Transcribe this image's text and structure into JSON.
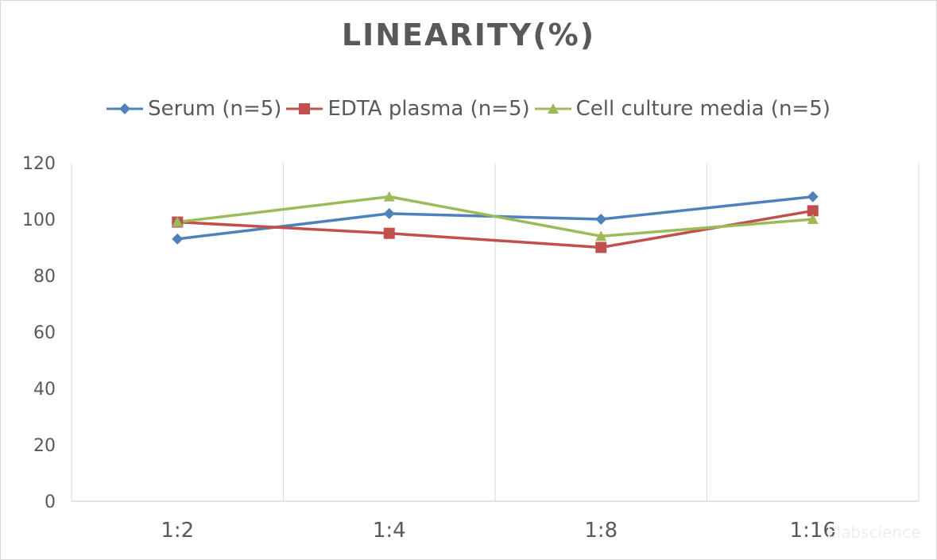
{
  "chart_data": {
    "type": "line",
    "title": "LINEARITY(%)",
    "xlabel": "",
    "ylabel": "",
    "categories": [
      "1:2",
      "1:4",
      "1:8",
      "1:16"
    ],
    "ylim": [
      0,
      120
    ],
    "yticks": [
      0,
      20,
      40,
      60,
      80,
      100,
      120
    ],
    "ytick_labels": [
      "0",
      "20",
      "40",
      "60",
      "80",
      "100",
      "120"
    ],
    "grid": "vertical-only",
    "legend_position": "top",
    "series": [
      {
        "name": "Serum (n=5)",
        "color": "#4f81bd",
        "marker": "diamond",
        "values": [
          93,
          102,
          100,
          108
        ]
      },
      {
        "name": "EDTA plasma (n=5)",
        "color": "#c0504d",
        "marker": "square",
        "values": [
          99,
          95,
          90,
          103
        ]
      },
      {
        "name": "Cell culture media (n=5)",
        "color": "#9bbb59",
        "marker": "triangle",
        "values": [
          99,
          108,
          94,
          100
        ]
      }
    ]
  },
  "watermark": "Elabscience"
}
